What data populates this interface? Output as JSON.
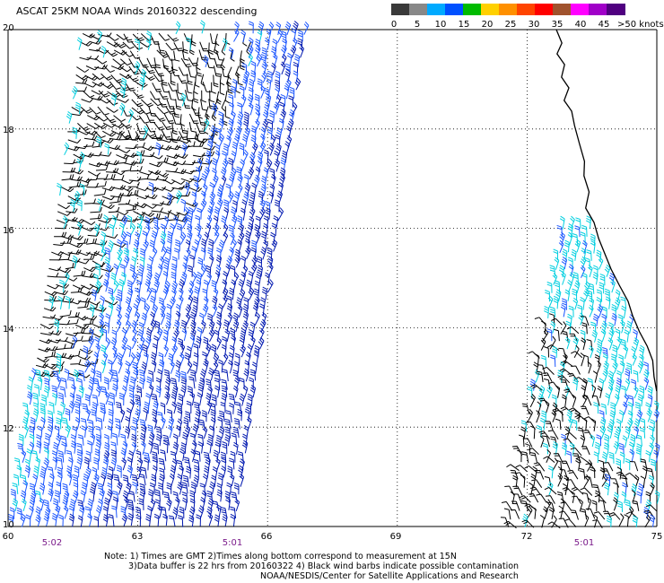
{
  "title": "ASCAT 25KM NOAA Winds 20160322 descending",
  "legend": {
    "unit": ">50 knots",
    "ticks": [
      "0",
      "5",
      "10",
      "15",
      "20",
      "25",
      "30",
      "35",
      "40",
      "45"
    ],
    "colors": [
      "#3a3a3a",
      "#888888",
      "#00aaff",
      "#0050ff",
      "#00bb00",
      "#ffd000",
      "#ff9000",
      "#ff4400",
      "#ff0000",
      "#a0522d",
      "#ff00ff",
      "#a000c8",
      "#500080"
    ]
  },
  "axes": {
    "lat_labels": [
      "20",
      "18",
      "16",
      "14",
      "12",
      "10"
    ],
    "lon_labels": [
      "60",
      "63",
      "66",
      "69",
      "72",
      "75"
    ]
  },
  "pass_times": [
    "5:02",
    "5:01",
    "5:01"
  ],
  "notes": {
    "line1": "Note: 1) Times are GMT 2)Times along bottom correspond to measurement at 15N",
    "line2": "3)Data buffer is 22 hrs from 20160322 4) Black wind barbs indicate possible contamination",
    "line3": "NOAA/NESDIS/Center for Satellite Applications and Research"
  },
  "barb_colors": {
    "contaminated": "#000000",
    "light": "#00cfe0",
    "moderate": "#1a55ff",
    "strong": "#0018b0"
  },
  "coastline_color": "#000000",
  "grid_color": "#000000"
}
